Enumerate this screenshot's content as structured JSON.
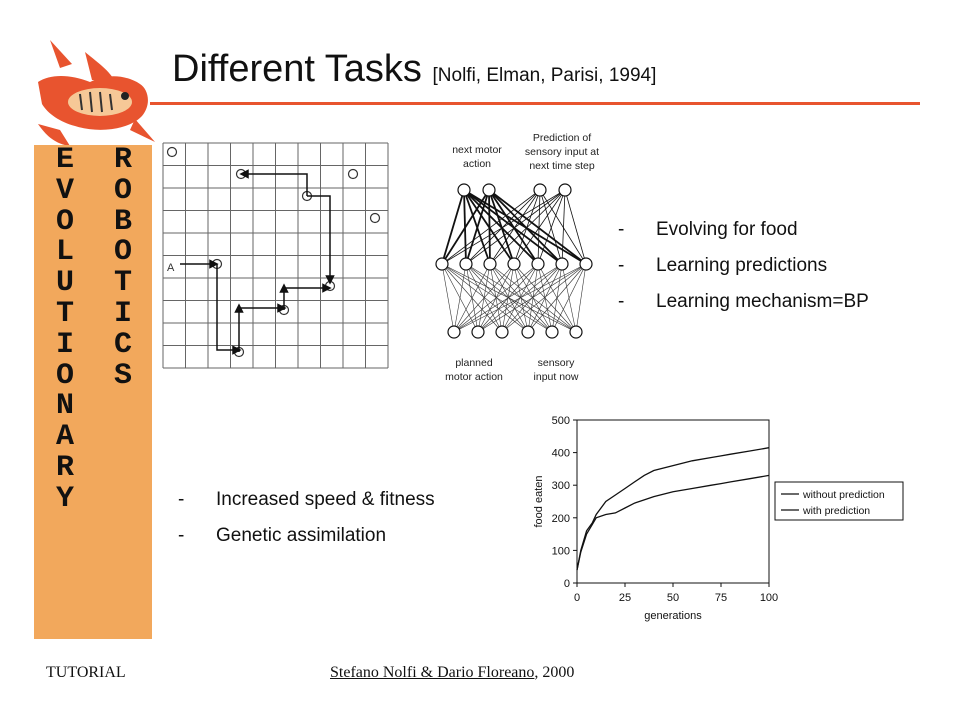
{
  "title": {
    "main": "Different Tasks ",
    "citation": "[Nolfi, Elman, Parisi, 1994]"
  },
  "sidebar": {
    "left_letters": [
      "E",
      "V",
      "O",
      "L",
      "U",
      "T",
      "I",
      "O",
      "N",
      "A",
      "R",
      "Y"
    ],
    "right_letters": [
      "R",
      "O",
      "B",
      "O",
      "T",
      "I",
      "C",
      "S"
    ]
  },
  "grid_label": "A",
  "network": {
    "top_left_label": [
      "next motor",
      "action"
    ],
    "top_right_label": [
      "Prediction of",
      "sensory input at",
      "next time step"
    ],
    "bottom_left_label": [
      "planned",
      "motor action"
    ],
    "bottom_right_label": [
      "sensory",
      "input now"
    ]
  },
  "bullets_right": [
    "Evolving for food",
    "Learning predictions",
    "Learning mechanism=BP"
  ],
  "bullets_left": [
    "Increased speed & fitness",
    "Genetic assimilation"
  ],
  "bullet_dash": "-",
  "chart_data": {
    "type": "line",
    "xlabel": "generations",
    "ylabel": "food eaten",
    "x_ticks": [
      0,
      25,
      50,
      75,
      100
    ],
    "y_ticks": [
      0,
      100,
      200,
      300,
      400,
      500
    ],
    "xlim": [
      0,
      100
    ],
    "ylim": [
      0,
      500
    ],
    "legend_position": "right",
    "series": [
      {
        "name": "without prediction",
        "x": [
          0,
          2,
          5,
          8,
          10,
          15,
          20,
          25,
          30,
          35,
          40,
          50,
          60,
          70,
          75,
          80,
          90,
          100
        ],
        "values": [
          40,
          100,
          160,
          185,
          210,
          250,
          270,
          290,
          310,
          330,
          345,
          360,
          375,
          385,
          390,
          395,
          405,
          415
        ]
      },
      {
        "name": "with prediction",
        "x": [
          0,
          2,
          5,
          8,
          10,
          15,
          20,
          25,
          30,
          35,
          40,
          50,
          60,
          70,
          75,
          80,
          90,
          100
        ],
        "values": [
          40,
          95,
          150,
          180,
          200,
          210,
          215,
          230,
          245,
          255,
          265,
          280,
          290,
          300,
          305,
          310,
          320,
          330
        ]
      }
    ]
  },
  "footer": {
    "left": "TUTORIAL",
    "authors": "Stefano Nolfi & Dario Floreano",
    "year": ", 2000"
  }
}
